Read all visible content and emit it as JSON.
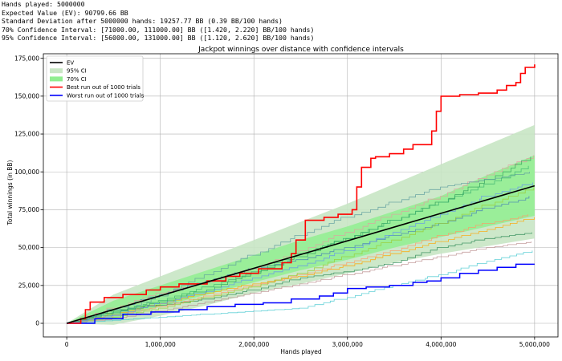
{
  "stats_lines": [
    "Hands played: 5000000",
    "Expected Value (EV): 90799.66 BB",
    "Standard Deviation after 5000000 hands: 19257.77 BB (0.39 BB/100 hands)",
    "70% Confidence Interval: [71000.00, 111000.00] BB ([1.420, 2.220] BB/100 hands)",
    "95% Confidence Interval: [56000.00, 131000.00] BB ([1.120, 2.620] BB/100 hands)"
  ],
  "chart_data": {
    "type": "line",
    "title": "Jackpot winnings over distance with confidence intervals",
    "xlabel": "Hands played",
    "ylabel": "Total winnings (in BB)",
    "xlim": [
      -250000,
      5250000
    ],
    "ylim": [
      -9000,
      178000
    ],
    "xticks": [
      0,
      1000000,
      2000000,
      3000000,
      4000000,
      5000000
    ],
    "xtick_labels": [
      "0",
      "1,000,000",
      "2,000,000",
      "3,000,000",
      "4,000,000",
      "5,000,000"
    ],
    "yticks": [
      0,
      25000,
      50000,
      75000,
      100000,
      125000,
      150000,
      175000
    ],
    "ytick_labels": [
      "0",
      "25,000",
      "50,000",
      "75,000",
      "100,000",
      "125,000",
      "150,000",
      "175,000"
    ],
    "grid": true,
    "legend_position": "top-left",
    "ev": {
      "name": "EV",
      "color": "#000000",
      "x": [
        0,
        5000000
      ],
      "y": [
        0,
        90800
      ]
    },
    "ci95": {
      "name": "95% CI",
      "color": "#c8e6c4",
      "x": [
        0,
        500000,
        1000000,
        1500000,
        2000000,
        2500000,
        3000000,
        3500000,
        4000000,
        4500000,
        5000000
      ],
      "lower": [
        0,
        -1000,
        5000,
        12000,
        20000,
        26000,
        33000,
        40000,
        46000,
        51000,
        56000
      ],
      "upper": [
        0,
        19000,
        31000,
        43000,
        55000,
        67000,
        79000,
        92000,
        105000,
        118000,
        131000
      ]
    },
    "ci70": {
      "name": "70% CI",
      "color": "#90ee90",
      "x": [
        0,
        500000,
        1000000,
        1500000,
        2000000,
        2500000,
        3000000,
        3500000,
        4000000,
        4500000,
        5000000
      ],
      "lower": [
        0,
        3000,
        11000,
        19000,
        27000,
        35000,
        42000,
        50000,
        57000,
        64000,
        71000
      ],
      "upper": [
        0,
        15000,
        25000,
        35000,
        45000,
        55000,
        64000,
        74000,
        84000,
        98000,
        111000
      ]
    },
    "best": {
      "name": "Best run out of 1000 trials",
      "color": "#ff0000",
      "x": [
        0,
        150000,
        200000,
        250000,
        400000,
        600000,
        850000,
        1000000,
        1200000,
        1500000,
        1700000,
        1850000,
        2050000,
        2300000,
        2400000,
        2450000,
        2550000,
        2750000,
        2900000,
        3050000,
        3100000,
        3150000,
        3250000,
        3300000,
        3450000,
        3600000,
        3700000,
        3900000,
        3950000,
        4000000,
        4200000,
        4400000,
        4600000,
        4700000,
        4800000,
        4850000,
        4900000,
        5000000
      ],
      "y": [
        0,
        3000,
        9000,
        14000,
        17000,
        19000,
        22000,
        24000,
        26000,
        28000,
        31000,
        33000,
        36000,
        40000,
        46000,
        55000,
        68000,
        70000,
        72000,
        75000,
        90000,
        103000,
        109000,
        110000,
        112000,
        115000,
        118000,
        127000,
        140000,
        150000,
        151000,
        152000,
        154000,
        157000,
        159000,
        165000,
        169000,
        171000
      ]
    },
    "worst": {
      "name": "Worst run out of 1000 trials",
      "color": "#0000ff",
      "x": [
        0,
        300000,
        600000,
        900000,
        1200000,
        1500000,
        1800000,
        2100000,
        2400000,
        2700000,
        2850000,
        3000000,
        3200000,
        3450000,
        3700000,
        3850000,
        4000000,
        4200000,
        4400000,
        4600000,
        4800000,
        5000000
      ],
      "y": [
        0,
        3000,
        6000,
        7500,
        9000,
        11000,
        12500,
        13500,
        16000,
        18000,
        20000,
        23000,
        24000,
        25000,
        27000,
        28000,
        30000,
        33000,
        35000,
        37000,
        39000,
        39000
      ]
    },
    "trial_series": [
      {
        "color": "#ffa500",
        "y": [
          0,
          6000,
          13000,
          20000,
          26000,
          31000,
          38000,
          46000,
          54000,
          62000,
          70000
        ]
      },
      {
        "color": "#2e8b57",
        "y": [
          0,
          8000,
          12000,
          16000,
          22000,
          30000,
          34000,
          40000,
          50000,
          56000,
          60000
        ]
      },
      {
        "color": "#4682b4",
        "y": [
          0,
          9000,
          19000,
          28000,
          36000,
          42000,
          50000,
          58000,
          66000,
          76000,
          84000
        ]
      },
      {
        "color": "#e0a0a0",
        "y": [
          0,
          10000,
          20000,
          27000,
          36000,
          48000,
          60000,
          72000,
          84000,
          98000,
          111000
        ]
      },
      {
        "color": "#32a05a",
        "y": [
          0,
          8000,
          14000,
          22000,
          33000,
          44000,
          56000,
          68000,
          80000,
          95000,
          110000
        ]
      },
      {
        "color": "#ff9966",
        "y": [
          0,
          5000,
          11000,
          18000,
          25000,
          32000,
          40000,
          48000,
          58000,
          66000,
          72000
        ]
      },
      {
        "color": "#48c9d0",
        "y": [
          0,
          2000,
          4000,
          6000,
          8000,
          10000,
          17000,
          25000,
          32000,
          41000,
          48000
        ]
      },
      {
        "color": "#5f9ea0",
        "y": [
          0,
          6000,
          18000,
          32000,
          45000,
          58000,
          70000,
          80000,
          90000,
          95000,
          100000
        ]
      },
      {
        "color": "#9acd32",
        "y": [
          0,
          4000,
          10000,
          17000,
          24000,
          33000,
          44000,
          55000,
          66000,
          78000,
          90000
        ]
      },
      {
        "color": "#bc8f8f",
        "y": [
          0,
          3000,
          8000,
          14000,
          20000,
          26000,
          32000,
          38000,
          44000,
          50000,
          54000
        ]
      },
      {
        "color": "#3cb371",
        "y": [
          0,
          7000,
          15000,
          24000,
          34000,
          46000,
          56000,
          68000,
          80000,
          92000,
          104000
        ]
      },
      {
        "color": "#6495ed",
        "y": [
          0,
          5000,
          13000,
          21000,
          30000,
          38000,
          48000,
          60000,
          72000,
          84000,
          93000
        ]
      }
    ],
    "trial_x": [
      0,
      500000,
      1000000,
      1500000,
      2000000,
      2500000,
      3000000,
      3500000,
      4000000,
      4500000,
      5000000
    ]
  }
}
